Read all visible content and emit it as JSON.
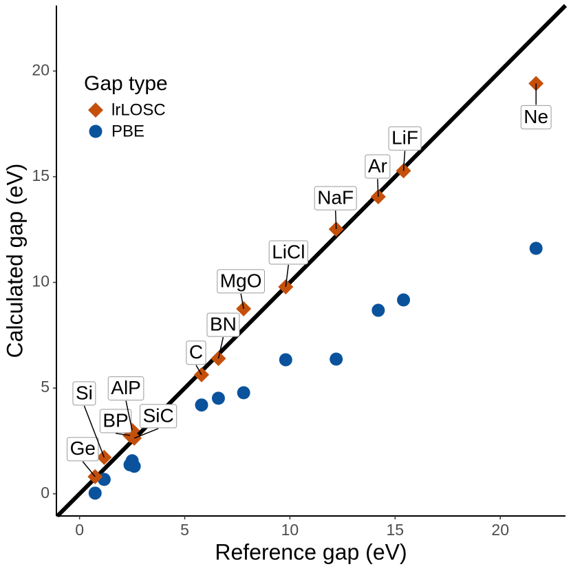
{
  "chart_data": {
    "type": "scatter",
    "x_label": "Reference gap (eV)",
    "y_label": "Calculated gap (eV)",
    "legend_title": "Gap type",
    "labels": [
      "Ge",
      "Si",
      "BP",
      "AlP",
      "SiC",
      "C",
      "BN",
      "MgO",
      "LiCl",
      "NaF",
      "Ar",
      "LiF",
      "Ne"
    ],
    "x": [
      0.74,
      1.17,
      2.4,
      2.5,
      2.6,
      5.8,
      6.6,
      7.8,
      9.8,
      12.2,
      14.2,
      15.4,
      21.7
    ],
    "series": [
      {
        "name": "lrLOSC",
        "color": "#c4500c",
        "marker": "diamond",
        "values": [
          0.81,
          1.72,
          2.76,
          3.0,
          2.63,
          5.63,
          6.4,
          8.75,
          9.79,
          12.52,
          14.05,
          15.28,
          19.41
        ]
      },
      {
        "name": "PBE",
        "color": "#0a539c",
        "marker": "circle",
        "values": [
          0.03,
          0.68,
          1.37,
          1.56,
          1.3,
          4.2,
          4.52,
          4.78,
          6.34,
          6.37,
          8.68,
          9.17,
          11.61
        ]
      }
    ],
    "xlim": [
      -1.1,
      23.1
    ],
    "ylim": [
      -1.05,
      23.1
    ],
    "xticks": [
      0,
      5,
      10,
      15,
      20
    ],
    "yticks": [
      0,
      5,
      10,
      15,
      20
    ],
    "identity_line": true
  }
}
